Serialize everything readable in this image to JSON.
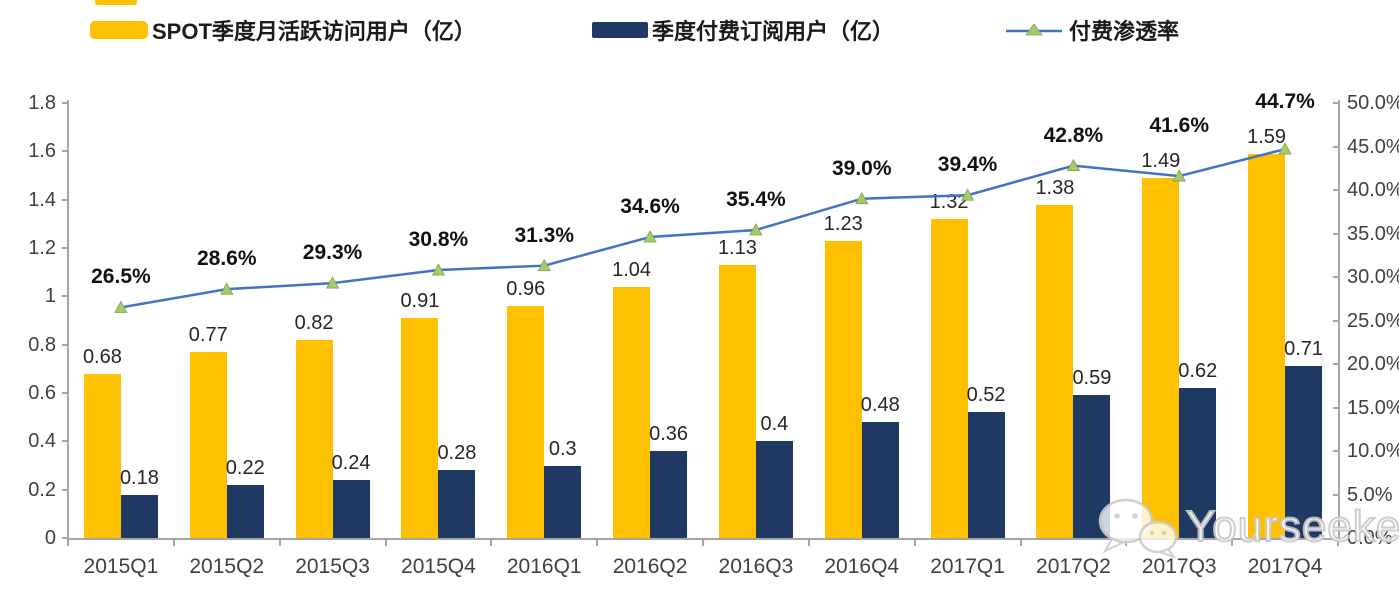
{
  "colors": {
    "mau_bar": "#FFC000",
    "sub_bar": "#1F3864",
    "line": "#4472C4",
    "marker_fill": "#A6C96A",
    "marker_stroke": "#7FA34F",
    "axis": "#A6A6A6"
  },
  "chart_data": {
    "type": "bar+line combo",
    "categories": [
      "2015Q1",
      "2015Q2",
      "2015Q3",
      "2015Q4",
      "2016Q1",
      "2016Q2",
      "2016Q3",
      "2016Q4",
      "2017Q1",
      "2017Q2",
      "2017Q3",
      "2017Q4"
    ],
    "series": [
      {
        "name": "SPOT季度月活跃访问用户（亿）",
        "type": "bar",
        "axis": "left",
        "color": "#FFC000",
        "values": [
          0.68,
          0.77,
          0.82,
          0.91,
          0.96,
          1.04,
          1.13,
          1.23,
          1.32,
          1.38,
          1.49,
          1.59
        ],
        "labels": [
          "0.68",
          "0.77",
          "0.82",
          "0.91",
          "0.96",
          "1.04",
          "1.13",
          "1.23",
          "1.32",
          "1.38",
          "1.49",
          "1.59"
        ]
      },
      {
        "name": "季度付费订阅用户（亿）",
        "type": "bar",
        "axis": "left",
        "color": "#1F3864",
        "values": [
          0.18,
          0.22,
          0.24,
          0.28,
          0.3,
          0.36,
          0.4,
          0.48,
          0.52,
          0.59,
          0.62,
          0.71
        ],
        "labels": [
          "0.18",
          "0.22",
          "0.24",
          "0.28",
          "0.3",
          "0.36",
          "0.4",
          "0.48",
          "0.52",
          "0.59",
          "0.62",
          "0.71"
        ]
      },
      {
        "name": "付费渗透率",
        "type": "line",
        "axis": "right",
        "color": "#4472C4",
        "values": [
          26.5,
          28.6,
          29.3,
          30.8,
          31.3,
          34.6,
          35.4,
          39.0,
          39.4,
          42.8,
          41.6,
          44.7
        ],
        "labels": [
          "26.5%",
          "28.6%",
          "29.3%",
          "30.8%",
          "31.3%",
          "34.6%",
          "35.4%",
          "39.0%",
          "39.4%",
          "42.8%",
          "41.6%",
          "44.7%"
        ]
      }
    ],
    "left_axis": {
      "min": 0,
      "max": 1.8,
      "ticks": [
        "0",
        "0.2",
        "0.4",
        "0.6",
        "0.8",
        "1",
        "1.2",
        "1.4",
        "1.6",
        "1.8"
      ]
    },
    "right_axis": {
      "min": 0,
      "max": 50,
      "ticks": [
        "0.0%",
        "5.0%",
        "10.0%",
        "15.0%",
        "20.0%",
        "25.0%",
        "30.0%",
        "35.0%",
        "40.0%",
        "45.0%",
        "50.0%"
      ]
    },
    "grid": "off",
    "legend_position": "top"
  },
  "watermark": {
    "text": "Yourseeker",
    "icon": "wechat-icon"
  }
}
